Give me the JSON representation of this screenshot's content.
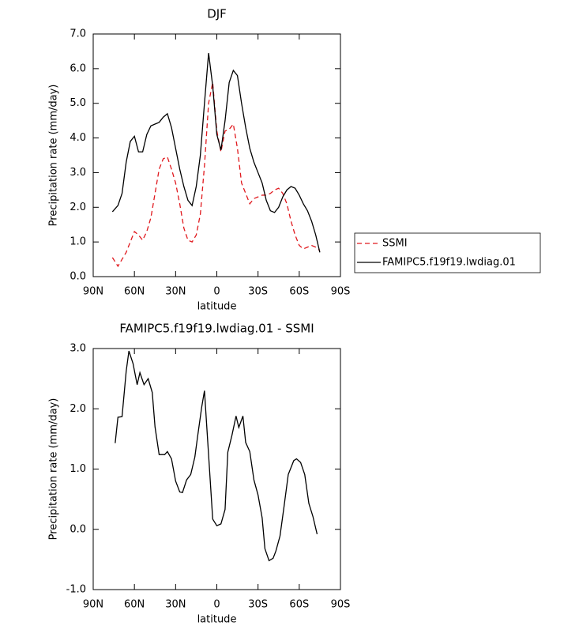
{
  "chart_data": [
    {
      "type": "line",
      "title": "DJF",
      "xlabel": "latitude",
      "ylabel": "Precipitation rate (mm/day)",
      "x": [
        76,
        72,
        69,
        66,
        63,
        60,
        57,
        54,
        51,
        48,
        45,
        42,
        39,
        36,
        33,
        30,
        27,
        24,
        21,
        18,
        15,
        12,
        9,
        6,
        3,
        0,
        -3,
        -6,
        -9,
        -12,
        -15,
        -18,
        -21,
        -24,
        -27,
        -30,
        -33,
        -36,
        -39,
        -42,
        -45,
        -48,
        -51,
        -54,
        -57,
        -60,
        -63,
        -66,
        -69,
        -72,
        -75
      ],
      "series": [
        {
          "name": "SSMI",
          "color": "#e0191e",
          "dashed": true,
          "values": [
            0.55,
            0.3,
            0.5,
            0.7,
            1.0,
            1.3,
            1.2,
            1.05,
            1.3,
            1.7,
            2.4,
            3.1,
            3.4,
            3.45,
            3.1,
            2.7,
            2.1,
            1.4,
            1.05,
            1.0,
            1.2,
            1.8,
            3.2,
            5.0,
            5.6,
            4.2,
            3.6,
            4.2,
            4.25,
            4.4,
            3.7,
            2.7,
            2.4,
            2.1,
            2.25,
            2.3,
            2.35,
            2.35,
            2.4,
            2.5,
            2.55,
            2.4,
            2.1,
            1.6,
            1.2,
            0.9,
            0.8,
            0.85,
            0.9,
            0.85,
            0.75
          ]
        },
        {
          "name": "FAMIPC5.f19f19.lwdiag.01",
          "color": "#000000",
          "dashed": false,
          "values": [
            1.87,
            2.05,
            2.4,
            3.3,
            3.9,
            4.05,
            3.6,
            3.6,
            4.1,
            4.35,
            4.4,
            4.45,
            4.6,
            4.7,
            4.3,
            3.7,
            3.1,
            2.6,
            2.2,
            2.05,
            2.6,
            3.5,
            5.0,
            6.45,
            5.5,
            4.1,
            3.65,
            4.5,
            5.6,
            5.95,
            5.8,
            5.0,
            4.3,
            3.7,
            3.3,
            3.0,
            2.7,
            2.2,
            1.9,
            1.85,
            2.0,
            2.3,
            2.5,
            2.6,
            2.55,
            2.35,
            2.1,
            1.9,
            1.6,
            1.2,
            0.7
          ]
        }
      ],
      "xlim": [
        90,
        -90
      ],
      "xticks": [
        {
          "value": 90,
          "label": "90N"
        },
        {
          "value": 60,
          "label": "60N"
        },
        {
          "value": 30,
          "label": "30N"
        },
        0,
        {
          "value": -30,
          "label": "30S"
        },
        {
          "value": -60,
          "label": "60S"
        },
        {
          "value": -90,
          "label": "90S"
        }
      ],
      "ylim": [
        0,
        7
      ],
      "yticks": [
        {
          "value": 0,
          "label": "0.0"
        },
        {
          "value": 1,
          "label": "1.0"
        },
        {
          "value": 2,
          "label": "2.0"
        },
        {
          "value": 3,
          "label": "3.0"
        },
        {
          "value": 4,
          "label": "4.0"
        },
        {
          "value": 5,
          "label": "5.0"
        },
        {
          "value": 6,
          "label": "6.0"
        },
        {
          "value": 7,
          "label": "7.0"
        }
      ],
      "legend": "outside right"
    },
    {
      "type": "line",
      "title": "FAMIPC5.f19f19.lwdiag.01 - SSMI",
      "xlabel": "latitude",
      "ylabel": "Precipitation rate (mm/day)",
      "x": [
        74,
        72,
        69,
        66,
        64,
        61,
        58,
        56,
        53,
        50,
        47,
        45,
        42,
        38,
        36,
        33,
        30,
        27,
        25,
        22,
        19,
        16,
        14,
        11,
        9,
        3,
        0,
        -3,
        -6,
        -8,
        -11,
        -14,
        -16,
        -19,
        -21,
        -24,
        -27,
        -30,
        -33,
        -35,
        -38,
        -41,
        -43,
        -46,
        -49,
        -52,
        -56,
        -58,
        -61,
        -64,
        -67,
        -70,
        -73
      ],
      "series": [
        {
          "color": "#000000",
          "dashed": false,
          "values": [
            1.43,
            1.86,
            1.87,
            2.62,
            2.96,
            2.75,
            2.4,
            2.6,
            2.4,
            2.5,
            2.27,
            1.7,
            1.24,
            1.24,
            1.29,
            1.17,
            0.8,
            0.62,
            0.61,
            0.82,
            0.91,
            1.2,
            1.54,
            2.03,
            2.3,
            0.17,
            0.06,
            0.09,
            0.33,
            1.28,
            1.56,
            1.88,
            1.69,
            1.88,
            1.44,
            1.29,
            0.82,
            0.57,
            0.19,
            -0.32,
            -0.52,
            -0.48,
            -0.36,
            -0.11,
            0.39,
            0.91,
            1.14,
            1.17,
            1.11,
            0.91,
            0.43,
            0.21,
            -0.08
          ]
        }
      ],
      "xlim": [
        90,
        -90
      ],
      "xticks": [
        {
          "value": 90,
          "label": "90N"
        },
        {
          "value": 60,
          "label": "60N"
        },
        {
          "value": 30,
          "label": "30N"
        },
        0,
        {
          "value": -30,
          "label": "30S"
        },
        {
          "value": -60,
          "label": "60S"
        },
        {
          "value": -90,
          "label": "90S"
        }
      ],
      "ylim": [
        -1,
        3
      ],
      "yticks": [
        {
          "value": -1,
          "label": "-1.0"
        },
        {
          "value": 0,
          "label": "0.0"
        },
        {
          "value": 1,
          "label": "1.0"
        },
        {
          "value": 2,
          "label": "2.0"
        },
        {
          "value": 3,
          "label": "3.0"
        }
      ]
    }
  ]
}
